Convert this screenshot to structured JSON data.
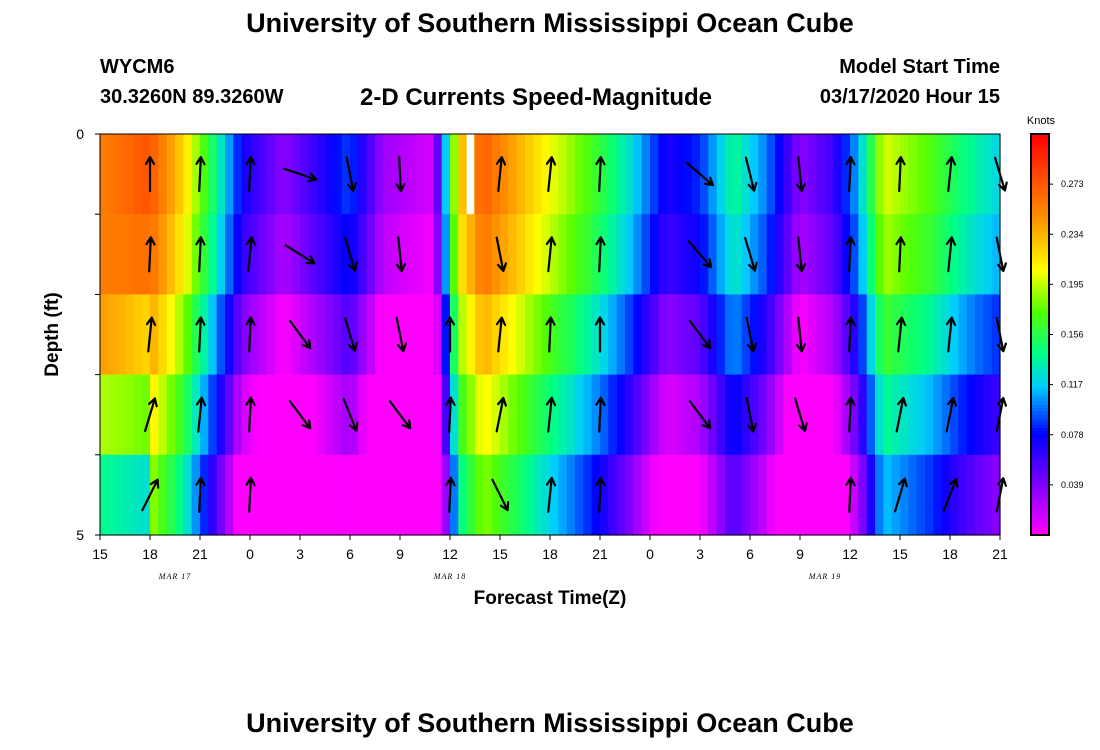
{
  "header": {
    "title": "University of Southern Mississippi Ocean Cube",
    "station_id": "WYCM6",
    "coordinates": "30.3260N 89.3260W",
    "plot_title": "2-D Currents Speed-Magnitude",
    "model_start_label": "Model Start Time",
    "model_start_value": "03/17/2020 Hour 15"
  },
  "footer": {
    "title": "University of Southern Mississippi Ocean Cube"
  },
  "chart_data": {
    "type": "heatmap",
    "title": "2-D Currents Speed-Magnitude",
    "xlabel": "Forecast Time(Z)",
    "ylabel": "Depth (ft)",
    "ylim": [
      0,
      5
    ],
    "y_tick_labels": [
      "0",
      "5"
    ],
    "x_range_hours": [
      0,
      54
    ],
    "x_tick_labels": [
      "15",
      "18",
      "21",
      "0",
      "3",
      "6",
      "9",
      "12",
      "15",
      "18",
      "21",
      "0",
      "3",
      "6",
      "9",
      "12",
      "15",
      "18",
      "21"
    ],
    "date_labels": [
      {
        "text": "MAR 17",
        "hour": 4.5
      },
      {
        "text": "MAR 18",
        "hour": 21
      },
      {
        "text": "MAR 19",
        "hour": 43.5
      }
    ],
    "colorbar": {
      "unit": "Knots",
      "tick_labels": [
        "0.273",
        "0.234",
        "0.195",
        "0.156",
        "0.117",
        "0.078",
        "0.039"
      ],
      "min": 0.0,
      "max": 0.312
    },
    "depth_rows": 5,
    "speed_series_surface": [
      {
        "hour": 0.0,
        "speed": 0.255
      },
      {
        "hour": 3.0,
        "speed": 0.275
      },
      {
        "hour": 5.0,
        "speed": 0.22
      },
      {
        "hour": 6.5,
        "speed": 0.16
      },
      {
        "hour": 8.5,
        "speed": 0.075
      },
      {
        "hour": 11.0,
        "speed": 0.035
      },
      {
        "hour": 13.5,
        "speed": 0.07
      },
      {
        "hour": 15.0,
        "speed": 0.09
      },
      {
        "hour": 17.0,
        "speed": 0.03
      },
      {
        "hour": 20.0,
        "speed": 0.012
      },
      {
        "hour": 21.5,
        "speed": 0.22
      },
      {
        "hour": 23.0,
        "speed": 0.27
      },
      {
        "hour": 26.0,
        "speed": 0.22
      },
      {
        "hour": 30.0,
        "speed": 0.16
      },
      {
        "hour": 32.0,
        "speed": 0.12
      },
      {
        "hour": 34.0,
        "speed": 0.07
      },
      {
        "hour": 36.0,
        "speed": 0.085
      },
      {
        "hour": 38.0,
        "speed": 0.14
      },
      {
        "hour": 40.0,
        "speed": 0.1
      },
      {
        "hour": 42.0,
        "speed": 0.035
      },
      {
        "hour": 44.0,
        "speed": 0.06
      },
      {
        "hour": 45.5,
        "speed": 0.11
      },
      {
        "hour": 47.0,
        "speed": 0.2
      },
      {
        "hour": 50.0,
        "speed": 0.17
      },
      {
        "hour": 52.0,
        "speed": 0.14
      },
      {
        "hour": 54.0,
        "speed": 0.12
      }
    ],
    "row_offsets": [
      0.0,
      -0.01,
      -0.035,
      -0.06,
      -0.085
    ],
    "left_taper": [
      {
        "hour": 0.0,
        "factors": [
          1.0,
          1.0,
          0.95,
          0.75,
          0.55
        ]
      },
      {
        "hour": 3.0,
        "factors": [
          1.0,
          0.95,
          0.8,
          0.65,
          0.45
        ]
      }
    ],
    "missing_cells": [
      {
        "hour_start": 22.0,
        "hour_end": 22.45,
        "row": 0
      }
    ],
    "vectors": [
      {
        "hour": 3.0,
        "row": 0,
        "u": 0.0,
        "v": 1.0
      },
      {
        "hour": 6.0,
        "row": 0,
        "u": 0.05,
        "v": 1.0
      },
      {
        "hour": 9.0,
        "row": 0,
        "u": 0.05,
        "v": 1.0
      },
      {
        "hour": 12.0,
        "row": 0,
        "u": 0.6,
        "v": -0.2
      },
      {
        "hour": 15.0,
        "row": 0,
        "u": 0.2,
        "v": -1.0
      },
      {
        "hour": 18.0,
        "row": 0,
        "u": 0.05,
        "v": -1.0
      },
      {
        "hour": 24.0,
        "row": 0,
        "u": 0.1,
        "v": 1.0
      },
      {
        "hour": 27.0,
        "row": 0,
        "u": 0.1,
        "v": 1.0
      },
      {
        "hour": 30.0,
        "row": 0,
        "u": 0.05,
        "v": 1.0
      },
      {
        "hour": 36.0,
        "row": 0,
        "u": 0.7,
        "v": -0.6
      },
      {
        "hour": 39.0,
        "row": 0,
        "u": 0.25,
        "v": -1.0
      },
      {
        "hour": 42.0,
        "row": 0,
        "u": 0.1,
        "v": -1.0
      },
      {
        "hour": 45.0,
        "row": 0,
        "u": 0.05,
        "v": 1.0
      },
      {
        "hour": 48.0,
        "row": 0,
        "u": 0.05,
        "v": 1.0
      },
      {
        "hour": 51.0,
        "row": 0,
        "u": 0.1,
        "v": 1.0
      },
      {
        "hour": 54.0,
        "row": 0,
        "u": 0.3,
        "v": -1.0
      },
      {
        "hour": 3.0,
        "row": 1,
        "u": 0.05,
        "v": 1.0
      },
      {
        "hour": 6.0,
        "row": 1,
        "u": 0.05,
        "v": 1.0
      },
      {
        "hour": 9.0,
        "row": 1,
        "u": 0.1,
        "v": 1.0
      },
      {
        "hour": 12.0,
        "row": 1,
        "u": 0.8,
        "v": -0.5
      },
      {
        "hour": 15.0,
        "row": 1,
        "u": 0.3,
        "v": -1.0
      },
      {
        "hour": 18.0,
        "row": 1,
        "u": 0.1,
        "v": -1.0
      },
      {
        "hour": 24.0,
        "row": 1,
        "u": 0.2,
        "v": -1.0
      },
      {
        "hour": 27.0,
        "row": 1,
        "u": 0.1,
        "v": 1.0
      },
      {
        "hour": 30.0,
        "row": 1,
        "u": 0.05,
        "v": 1.0
      },
      {
        "hour": 36.0,
        "row": 1,
        "u": 0.6,
        "v": -0.7
      },
      {
        "hour": 39.0,
        "row": 1,
        "u": 0.3,
        "v": -1.0
      },
      {
        "hour": 42.0,
        "row": 1,
        "u": 0.1,
        "v": -1.0
      },
      {
        "hour": 45.0,
        "row": 1,
        "u": 0.05,
        "v": 1.0
      },
      {
        "hour": 48.0,
        "row": 1,
        "u": 0.05,
        "v": 1.0
      },
      {
        "hour": 51.0,
        "row": 1,
        "u": 0.1,
        "v": 1.0
      },
      {
        "hour": 54.0,
        "row": 1,
        "u": 0.2,
        "v": -1.0
      },
      {
        "hour": 3.0,
        "row": 2,
        "u": 0.1,
        "v": 1.0
      },
      {
        "hour": 6.0,
        "row": 2,
        "u": 0.05,
        "v": 1.0
      },
      {
        "hour": 9.0,
        "row": 2,
        "u": 0.05,
        "v": 1.0
      },
      {
        "hour": 12.0,
        "row": 2,
        "u": 0.6,
        "v": -0.8
      },
      {
        "hour": 15.0,
        "row": 2,
        "u": 0.3,
        "v": -1.0
      },
      {
        "hour": 18.0,
        "row": 2,
        "u": 0.2,
        "v": -1.0
      },
      {
        "hour": 21.0,
        "row": 2,
        "u": 0.0,
        "v": 1.0
      },
      {
        "hour": 24.0,
        "row": 2,
        "u": 0.1,
        "v": 1.0
      },
      {
        "hour": 27.0,
        "row": 2,
        "u": 0.05,
        "v": 1.0
      },
      {
        "hour": 30.0,
        "row": 2,
        "u": 0.0,
        "v": 1.0
      },
      {
        "hour": 36.0,
        "row": 2,
        "u": 0.6,
        "v": -0.8
      },
      {
        "hour": 39.0,
        "row": 2,
        "u": 0.2,
        "v": -1.0
      },
      {
        "hour": 42.0,
        "row": 2,
        "u": 0.1,
        "v": -1.0
      },
      {
        "hour": 45.0,
        "row": 2,
        "u": 0.05,
        "v": 1.0
      },
      {
        "hour": 48.0,
        "row": 2,
        "u": 0.1,
        "v": 1.0
      },
      {
        "hour": 51.0,
        "row": 2,
        "u": 0.1,
        "v": 1.0
      },
      {
        "hour": 54.0,
        "row": 2,
        "u": 0.2,
        "v": -1.0
      },
      {
        "hour": 3.0,
        "row": 3,
        "u": 0.3,
        "v": 1.0
      },
      {
        "hour": 6.0,
        "row": 3,
        "u": 0.1,
        "v": 1.0
      },
      {
        "hour": 9.0,
        "row": 3,
        "u": 0.05,
        "v": 1.0
      },
      {
        "hour": 12.0,
        "row": 3,
        "u": 0.6,
        "v": -0.8
      },
      {
        "hour": 15.0,
        "row": 3,
        "u": 0.4,
        "v": -1.0
      },
      {
        "hour": 18.0,
        "row": 3,
        "u": 0.6,
        "v": -0.8
      },
      {
        "hour": 21.0,
        "row": 3,
        "u": 0.05,
        "v": 1.0
      },
      {
        "hour": 24.0,
        "row": 3,
        "u": 0.2,
        "v": 1.0
      },
      {
        "hour": 27.0,
        "row": 3,
        "u": 0.1,
        "v": 1.0
      },
      {
        "hour": 30.0,
        "row": 3,
        "u": 0.05,
        "v": 1.0
      },
      {
        "hour": 36.0,
        "row": 3,
        "u": 0.6,
        "v": -0.8
      },
      {
        "hour": 39.0,
        "row": 3,
        "u": 0.2,
        "v": -1.0
      },
      {
        "hour": 42.0,
        "row": 3,
        "u": 0.3,
        "v": -1.0
      },
      {
        "hour": 45.0,
        "row": 3,
        "u": 0.05,
        "v": 1.0
      },
      {
        "hour": 48.0,
        "row": 3,
        "u": 0.2,
        "v": 1.0
      },
      {
        "hour": 51.0,
        "row": 3,
        "u": 0.2,
        "v": 1.0
      },
      {
        "hour": 54.0,
        "row": 3,
        "u": 0.2,
        "v": 1.0
      },
      {
        "hour": 3.0,
        "row": 4,
        "u": 0.5,
        "v": 1.0
      },
      {
        "hour": 6.0,
        "row": 4,
        "u": 0.05,
        "v": 1.0
      },
      {
        "hour": 9.0,
        "row": 4,
        "u": 0.05,
        "v": 1.0
      },
      {
        "hour": 21.0,
        "row": 4,
        "u": 0.05,
        "v": 1.0
      },
      {
        "hour": 24.0,
        "row": 4,
        "u": 0.5,
        "v": -1.0
      },
      {
        "hour": 27.0,
        "row": 4,
        "u": 0.1,
        "v": 1.0
      },
      {
        "hour": 30.0,
        "row": 4,
        "u": 0.05,
        "v": 1.0
      },
      {
        "hour": 45.0,
        "row": 4,
        "u": 0.05,
        "v": 1.0
      },
      {
        "hour": 48.0,
        "row": 4,
        "u": 0.3,
        "v": 1.0
      },
      {
        "hour": 51.0,
        "row": 4,
        "u": 0.4,
        "v": 1.0
      },
      {
        "hour": 54.0,
        "row": 4,
        "u": 0.2,
        "v": 1.0
      }
    ]
  }
}
